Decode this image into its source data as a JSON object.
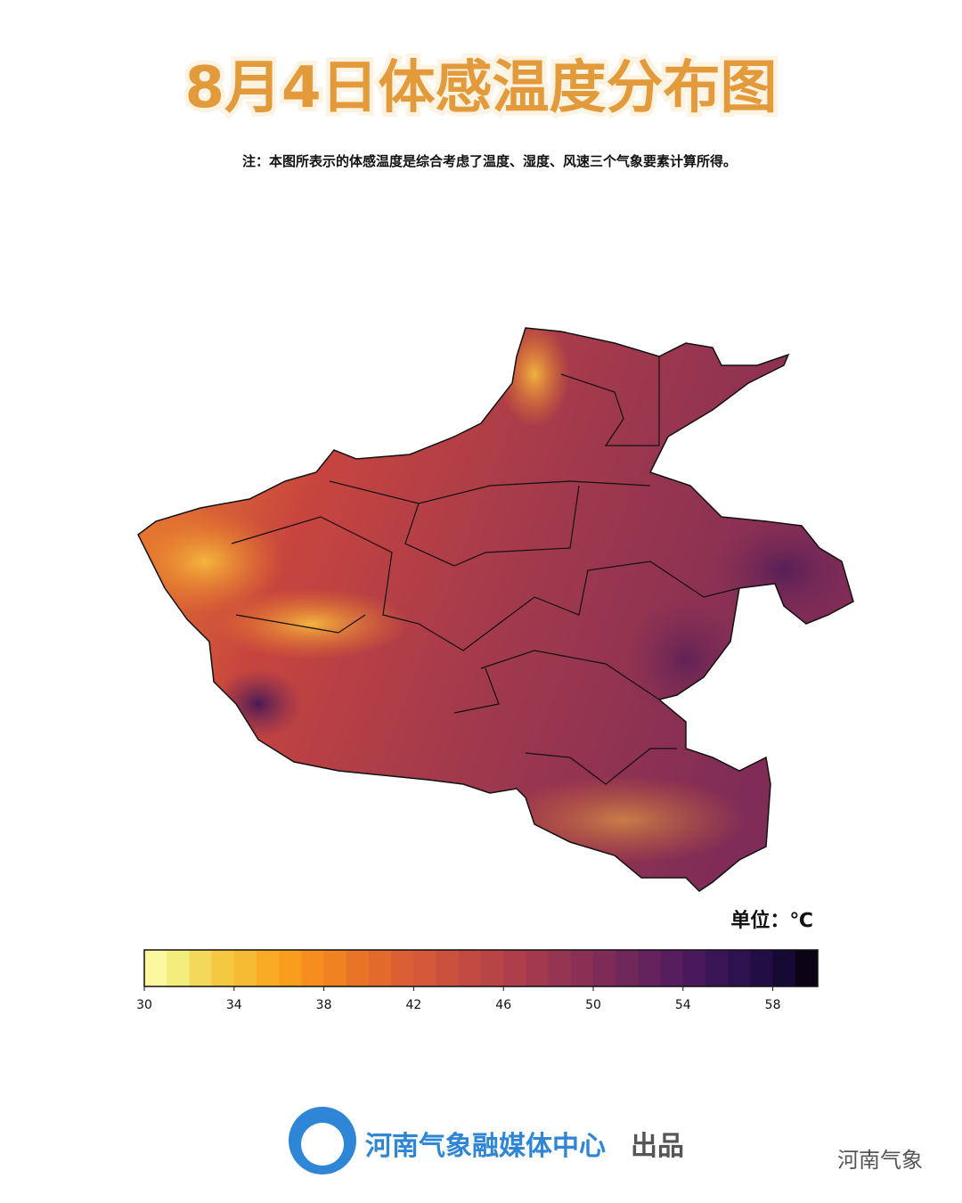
{
  "title": "8月4日体感温度分布图",
  "note": "注：本图所表示的体感温度是综合考虑了温度、湿度、风速三个气象要素计算所得。",
  "unit_label": "单位：℃",
  "legend": {
    "range": [
      30,
      60
    ],
    "ticks": [
      30,
      34,
      38,
      42,
      46,
      50,
      54,
      58
    ],
    "colors": [
      "#fbf8a0",
      "#f3ee7c",
      "#f3d95a",
      "#f5c842",
      "#f7bb33",
      "#f9ab25",
      "#f99d1c",
      "#f58e1e",
      "#f08222",
      "#ea7426",
      "#e3692d",
      "#db5f33",
      "#d45839",
      "#cc513d",
      "#c34a42",
      "#b94446",
      "#ad3e4a",
      "#a2394e",
      "#963551",
      "#8a3054",
      "#7d2b57",
      "#702759",
      "#63225b",
      "#561e5c",
      "#481a5b",
      "#3b1656",
      "#2e1250",
      "#220e45",
      "#160a35",
      "#0a0414"
    ]
  },
  "footer": {
    "producer": "河南气象融媒体中心",
    "suffix": "出品"
  },
  "watermark": "河南气象"
}
